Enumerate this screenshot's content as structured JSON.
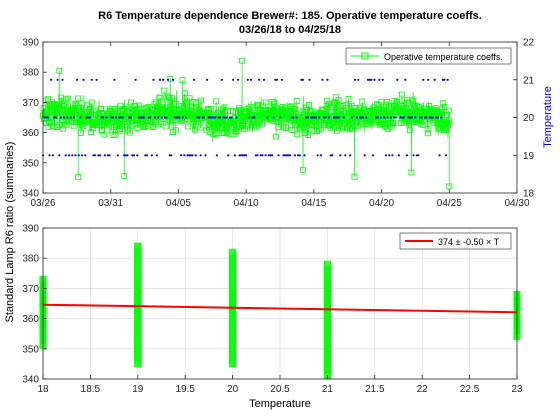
{
  "figure": {
    "title_line1": "R6 Temperature dependence Brewer#: 185. Operative temperature coeffs.",
    "title_line2": "03/26/18 to 04/25/18",
    "shared_ylabel": "Standard Lamp R6 ratio (summaries)"
  },
  "chart_data": [
    {
      "type": "line",
      "id": "timeseries",
      "xlabel": "",
      "ylabel_right": "Temperature",
      "x_ticks": [
        "03/26",
        "03/31",
        "04/05",
        "04/10",
        "04/15",
        "04/20",
        "04/25",
        "04/30"
      ],
      "xlim": [
        "03/26/18",
        "04/30/18"
      ],
      "ylim": [
        340,
        390
      ],
      "y_ticks": [
        340,
        350,
        360,
        370,
        380,
        390
      ],
      "y2lim": [
        18,
        22
      ],
      "y2_ticks": [
        18,
        19,
        20,
        21,
        22
      ],
      "grid": false,
      "legend": {
        "label": "Operative temperature coeffs.",
        "placement": "top-right"
      },
      "series": [
        {
          "name": "Operative temperature coeffs.",
          "axis": "left",
          "color": "#00ff00",
          "marker": "square-open",
          "x_start": "03/26/18",
          "x_end": "04/25/18",
          "samples_per_day": 50,
          "typical_range": [
            351,
            381
          ],
          "x": [
            "03/26/18",
            "03/28/18",
            "03/30/18",
            "04/01/18",
            "04/03/18",
            "04/05/18",
            "04/07/18",
            "04/09/18",
            "04/11/18",
            "04/13/18",
            "04/15/18",
            "04/17/18",
            "04/19/18",
            "04/21/18",
            "04/23/18",
            "04/25/18"
          ],
          "y": [
            366,
            367,
            364,
            365,
            366,
            367,
            365,
            364,
            366,
            365,
            364,
            366,
            365,
            367,
            366,
            364
          ]
        },
        {
          "name": "Temperature",
          "axis": "right",
          "color": "#0000ff",
          "marker": "dot",
          "x_start": "03/26/18",
          "x_end": "04/25/18",
          "levels": [
            19,
            20,
            21
          ]
        }
      ]
    },
    {
      "type": "scatter",
      "id": "regression",
      "xlabel": "Temperature",
      "x_ticks": [
        "18",
        "18.5",
        "19",
        "19.5",
        "20",
        "20.5",
        "21",
        "21.5",
        "22",
        "22.5",
        "23"
      ],
      "xlim": [
        18,
        23
      ],
      "ylim": [
        340,
        390
      ],
      "y_ticks": [
        340,
        350,
        360,
        370,
        380,
        390
      ],
      "grid": true,
      "legend": {
        "label": "374 ± -0.50 × T",
        "placement": "top-right"
      },
      "points": [
        {
          "x": 18,
          "y_min": 351,
          "y_max": 373
        },
        {
          "x": 19,
          "y_min": 345,
          "y_max": 384
        },
        {
          "x": 20,
          "y_min": 345,
          "y_max": 382
        },
        {
          "x": 21,
          "y_min": 341,
          "y_max": 378
        },
        {
          "x": 23,
          "y_min": 354,
          "y_max": 368
        }
      ],
      "fit": {
        "color": "#ff0000",
        "x": [
          18,
          23
        ],
        "y": [
          364.6,
          362.1
        ]
      }
    }
  ]
}
